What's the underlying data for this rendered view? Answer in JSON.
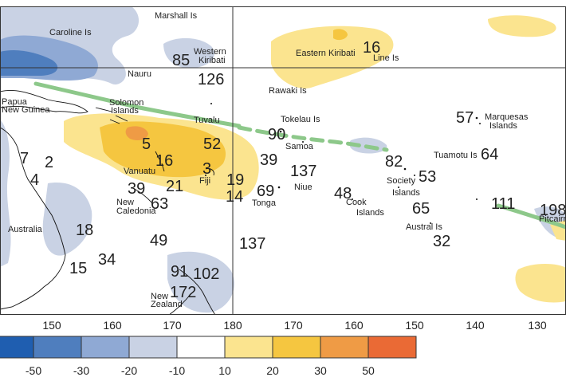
{
  "map": {
    "longitude_ticks": [
      "150",
      "160",
      "170",
      "180",
      "170",
      "160",
      "150",
      "140",
      "130"
    ],
    "island_labels": [
      {
        "id": "marshall",
        "text": "Marshall Is"
      },
      {
        "id": "caroline",
        "text": "Caroline Is"
      },
      {
        "id": "western-kiribati-1",
        "text": "Western"
      },
      {
        "id": "western-kiribati-2",
        "text": "Kiribati"
      },
      {
        "id": "nauru",
        "text": "Nauru"
      },
      {
        "id": "eastern-kiribati",
        "text": "Eastern Kiribati"
      },
      {
        "id": "line-is",
        "text": "Line Is"
      },
      {
        "id": "rawaki",
        "text": "Rawaki Is"
      },
      {
        "id": "png-1",
        "text": "Papua"
      },
      {
        "id": "png-2",
        "text": "New Guinea"
      },
      {
        "id": "solomon-1",
        "text": "Solomon"
      },
      {
        "id": "solomon-2",
        "text": "Islands"
      },
      {
        "id": "tuvalu",
        "text": "Tuvalu"
      },
      {
        "id": "tokelau",
        "text": "Tokelau Is"
      },
      {
        "id": "marquesas-1",
        "text": "Marquesas"
      },
      {
        "id": "marquesas-2",
        "text": "Islands"
      },
      {
        "id": "samoa",
        "text": "Samoa"
      },
      {
        "id": "tuamotu",
        "text": "Tuamotu Is"
      },
      {
        "id": "vanuatu",
        "text": "Vanuatu"
      },
      {
        "id": "fiji",
        "text": "Fiji"
      },
      {
        "id": "society-1",
        "text": "Society"
      },
      {
        "id": "society-2",
        "text": "Islands"
      },
      {
        "id": "niue",
        "text": "Niue"
      },
      {
        "id": "new-caledonia-1",
        "text": "New"
      },
      {
        "id": "new-caledonia-2",
        "text": "Caledonia"
      },
      {
        "id": "tonga",
        "text": "Tonga"
      },
      {
        "id": "cook-1",
        "text": "Cook"
      },
      {
        "id": "cook-2",
        "text": "Islands"
      },
      {
        "id": "austral",
        "text": "Austral Is"
      },
      {
        "id": "pitcairn",
        "text": "Pitcairn"
      },
      {
        "id": "australia",
        "text": "Australia"
      },
      {
        "id": "new-zealand-1",
        "text": "New"
      },
      {
        "id": "new-zealand-2",
        "text": "Zealand"
      }
    ],
    "rainfall_values": [
      {
        "id": "v16-line",
        "text": "16"
      },
      {
        "id": "v85",
        "text": "85"
      },
      {
        "id": "v126",
        "text": "126"
      },
      {
        "id": "v57",
        "text": "57"
      },
      {
        "id": "v90",
        "text": "90"
      },
      {
        "id": "v64",
        "text": "64"
      },
      {
        "id": "v5",
        "text": "5"
      },
      {
        "id": "v52",
        "text": "52"
      },
      {
        "id": "v16",
        "text": "16"
      },
      {
        "id": "v7",
        "text": "7"
      },
      {
        "id": "v2",
        "text": "2"
      },
      {
        "id": "v39a",
        "text": "39"
      },
      {
        "id": "v137a",
        "text": "137"
      },
      {
        "id": "v82",
        "text": "82"
      },
      {
        "id": "v53",
        "text": "53"
      },
      {
        "id": "v3",
        "text": "3"
      },
      {
        "id": "v19",
        "text": "19"
      },
      {
        "id": "v4",
        "text": "4"
      },
      {
        "id": "v21",
        "text": "21"
      },
      {
        "id": "v39b",
        "text": "39"
      },
      {
        "id": "v69",
        "text": "69"
      },
      {
        "id": "v14",
        "text": "14"
      },
      {
        "id": "v48",
        "text": "48"
      },
      {
        "id": "v63",
        "text": "63"
      },
      {
        "id": "v65",
        "text": "65"
      },
      {
        "id": "v111",
        "text": "111"
      },
      {
        "id": "v198",
        "text": "198"
      },
      {
        "id": "v18",
        "text": "18"
      },
      {
        "id": "v32",
        "text": "32"
      },
      {
        "id": "v49",
        "text": "49"
      },
      {
        "id": "v137b",
        "text": "137"
      },
      {
        "id": "v34",
        "text": "34"
      },
      {
        "id": "v15",
        "text": "15"
      },
      {
        "id": "v91",
        "text": "91"
      },
      {
        "id": "v102",
        "text": "102"
      },
      {
        "id": "v172",
        "text": "172"
      }
    ]
  },
  "legend": {
    "colors": [
      "#1f5eb0",
      "#4f7ebe",
      "#8fa9d4",
      "#c9d2e4",
      "#ffffff",
      "#fbe48f",
      "#f5c640",
      "#ef9b45",
      "#ea6a35"
    ],
    "labels": [
      "-50",
      "-30",
      "-20",
      "-10",
      "10",
      "20",
      "30",
      "50"
    ]
  }
}
